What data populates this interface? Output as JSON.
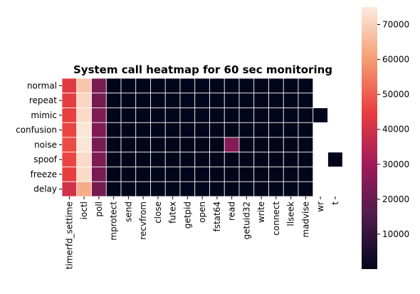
{
  "chart_data": {
    "type": "heatmap",
    "title": "System call heatmap for 60 sec monitoring",
    "rows": [
      "normal",
      "repeat",
      "mimic",
      "confusion",
      "noise",
      "spoof",
      "freeze",
      "delay"
    ],
    "columns": [
      "timerfd_settime",
      "ioctl",
      "poll",
      "mprotect",
      "send",
      "recvfrom",
      "close",
      "futex",
      "getpid",
      "open",
      "fstat64",
      "read",
      "getuid32",
      "write",
      "connect",
      "llseek",
      "madvise",
      "wr",
      "t"
    ],
    "values": [
      [
        43000,
        68000,
        23000,
        0,
        0,
        0,
        0,
        0,
        0,
        0,
        0,
        0,
        0,
        0,
        0,
        0,
        0,
        null,
        null
      ],
      [
        44000,
        71000,
        22000,
        0,
        0,
        0,
        0,
        0,
        0,
        0,
        0,
        0,
        0,
        0,
        0,
        0,
        0,
        null,
        null
      ],
      [
        45000,
        72000,
        24000,
        0,
        0,
        0,
        0,
        0,
        0,
        0,
        0,
        0,
        0,
        0,
        0,
        0,
        0,
        0,
        null
      ],
      [
        46000,
        74000,
        24000,
        0,
        0,
        0,
        0,
        0,
        0,
        0,
        0,
        0,
        0,
        0,
        0,
        0,
        0,
        null,
        null
      ],
      [
        47000,
        74000,
        23000,
        0,
        0,
        0,
        0,
        0,
        0,
        0,
        0,
        25000,
        0,
        0,
        0,
        0,
        0,
        null,
        null
      ],
      [
        46000,
        72000,
        24000,
        0,
        0,
        0,
        0,
        0,
        0,
        0,
        0,
        0,
        0,
        0,
        0,
        0,
        0,
        null,
        0
      ],
      [
        45000,
        72000,
        23000,
        0,
        0,
        0,
        0,
        0,
        0,
        0,
        0,
        0,
        0,
        0,
        0,
        0,
        0,
        null,
        null
      ],
      [
        40000,
        63000,
        22000,
        0,
        0,
        0,
        0,
        0,
        0,
        0,
        0,
        0,
        0,
        0,
        0,
        0,
        0,
        null,
        null
      ]
    ],
    "colorbar": {
      "range": [
        0,
        75000
      ],
      "ticks": [
        10000,
        20000,
        30000,
        40000,
        50000,
        60000,
        70000
      ],
      "colormap": [
        "#03051a",
        "#4c1d4b",
        "#a11a5b",
        "#e83f3f",
        "#f69c73",
        "#faebdd"
      ]
    },
    "cell_border_color": "#ffffff"
  }
}
